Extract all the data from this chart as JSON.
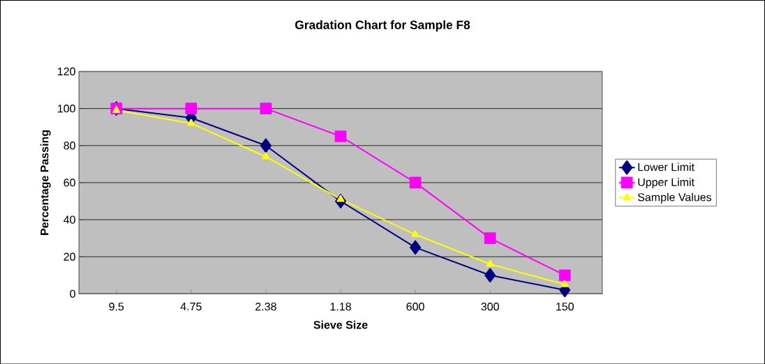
{
  "chart_data": {
    "type": "line",
    "title": "Gradation Chart for Sample F8",
    "xlabel": "Sieve Size",
    "ylabel": "Percentage Passing",
    "categories": [
      "9.5",
      "4.75",
      "2.38",
      "1.18",
      "600",
      "300",
      "150"
    ],
    "series": [
      {
        "name": "Lower Limit",
        "color": "#000080",
        "marker": "diamond",
        "values": [
          100,
          95,
          80,
          50,
          25,
          10,
          2
        ]
      },
      {
        "name": "Upper Limit",
        "color": "#ff00ff",
        "marker": "square",
        "values": [
          100,
          100,
          100,
          85,
          60,
          30,
          10
        ]
      },
      {
        "name": "Sample Values",
        "color": "#ffff00",
        "marker": "triangle",
        "values": [
          99,
          92,
          74,
          51,
          32,
          16,
          5
        ]
      }
    ],
    "ylim": [
      0,
      120
    ],
    "yticks": [
      0,
      20,
      40,
      60,
      80,
      100,
      120
    ],
    "grid": "y",
    "legend": "right",
    "line_style": "solid"
  }
}
